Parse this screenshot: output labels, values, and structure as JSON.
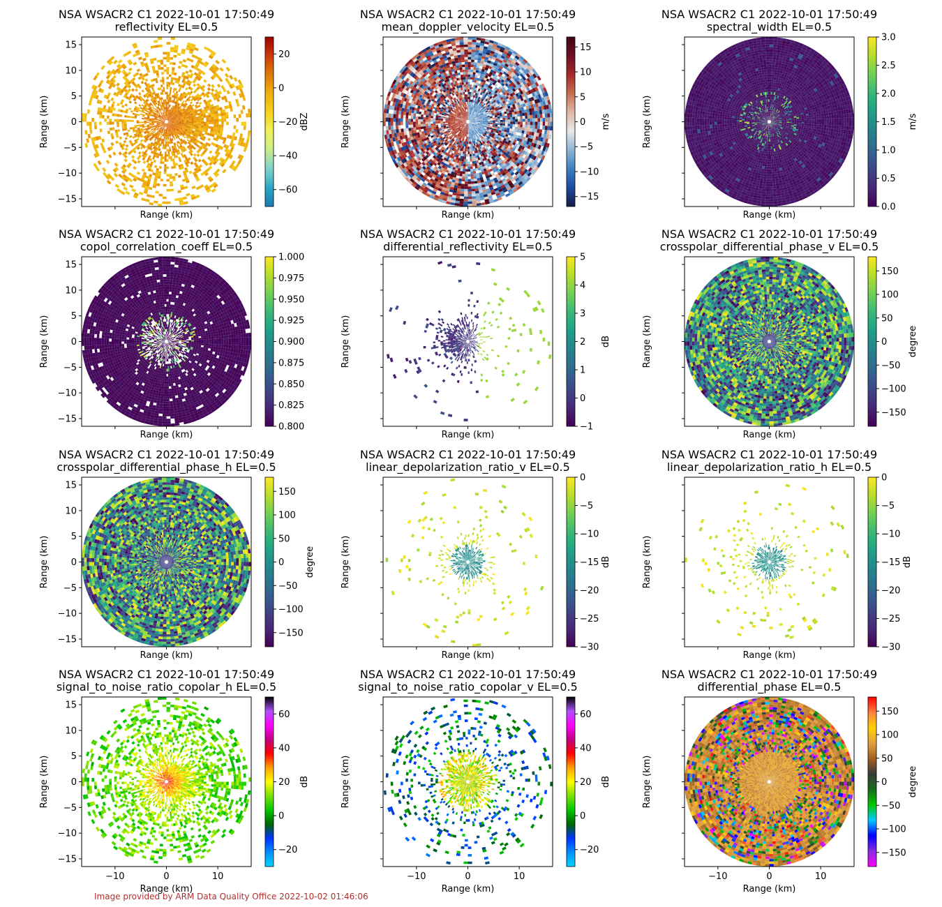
{
  "footer": "Image provided by ARM Data Quality Office 2022-10-02 01:46:06",
  "chart_data": [
    {
      "type": "heatmap",
      "title": "NSA WSACR2 C1 2022-10-01 17:50:49",
      "subtitle": "reflectivity  EL=0.5",
      "xlabel": "Range (km)",
      "ylabel": "Range (km)",
      "xlim": [
        -16.5,
        16.5
      ],
      "ylim": [
        -16.5,
        16.5
      ],
      "yticks": [
        15,
        10,
        5,
        0,
        -5,
        -10,
        -15
      ],
      "xticks": [
        -10,
        0,
        10
      ],
      "colorbar": {
        "label": "dBZ",
        "ticks": [
          20,
          0,
          -20,
          -40,
          -60
        ],
        "range": [
          -70,
          30
        ],
        "cmap": "pyart_homeyer"
      },
      "pattern": "refl"
    },
    {
      "type": "heatmap",
      "title": "NSA WSACR2 C1 2022-10-01 17:50:49",
      "subtitle": "mean_doppler_velocity  EL=0.5",
      "xlabel": "Range (km)",
      "ylabel": "Range (km)",
      "xlim": [
        -16.5,
        16.5
      ],
      "ylim": [
        -16.5,
        16.5
      ],
      "yticks": [
        15,
        10,
        5,
        0,
        -5,
        -10,
        -15
      ],
      "xticks": [
        -10,
        0,
        10
      ],
      "colorbar": {
        "label": "m/s",
        "ticks": [
          15,
          10,
          5,
          0,
          -5,
          -10,
          -15
        ],
        "range": [
          -17,
          17
        ],
        "cmap": "balance"
      },
      "pattern": "vel"
    },
    {
      "type": "heatmap",
      "title": "NSA WSACR2 C1 2022-10-01 17:50:49",
      "subtitle": "spectral_width  EL=0.5",
      "xlabel": "Range (km)",
      "ylabel": "Range (km)",
      "xlim": [
        -16.5,
        16.5
      ],
      "ylim": [
        -16.5,
        16.5
      ],
      "yticks": [
        15,
        10,
        5,
        0,
        -5,
        -10,
        -15
      ],
      "xticks": [
        -10,
        0,
        10
      ],
      "colorbar": {
        "label": "m/s",
        "ticks": [
          3.0,
          2.5,
          2.0,
          1.5,
          1.0,
          0.5,
          0.0
        ],
        "ticklabels": [
          "3.0",
          "2.5",
          "2.0",
          "1.5",
          "1.0",
          "0.5",
          "0.0"
        ],
        "range": [
          0,
          3
        ],
        "cmap": "viridis"
      },
      "pattern": "sw"
    },
    {
      "type": "heatmap",
      "title": "NSA WSACR2 C1 2022-10-01 17:50:49",
      "subtitle": "copol_correlation_coeff  EL=0.5",
      "xlabel": "Range (km)",
      "ylabel": "Range (km)",
      "xlim": [
        -16.5,
        16.5
      ],
      "ylim": [
        -16.5,
        16.5
      ],
      "yticks": [
        15,
        10,
        5,
        0,
        -5,
        -10,
        -15
      ],
      "xticks": [
        -10,
        0,
        10
      ],
      "colorbar": {
        "label": "",
        "ticks": [
          1.0,
          0.975,
          0.95,
          0.925,
          0.9,
          0.875,
          0.85,
          0.825,
          0.8
        ],
        "ticklabels": [
          "1.000",
          "0.975",
          "0.950",
          "0.925",
          "0.900",
          "0.875",
          "0.850",
          "0.825",
          "0.800"
        ],
        "range": [
          0.8,
          1.0
        ],
        "cmap": "viridis"
      },
      "pattern": "rho"
    },
    {
      "type": "heatmap",
      "title": "NSA WSACR2 C1 2022-10-01 17:50:49",
      "subtitle": "differential_reflectivity  EL=0.5",
      "xlabel": "Range (km)",
      "ylabel": "Range (km)",
      "xlim": [
        -16.5,
        16.5
      ],
      "ylim": [
        -16.5,
        16.5
      ],
      "yticks": [
        15,
        10,
        5,
        0,
        -5,
        -10,
        -15
      ],
      "xticks": [
        -10,
        0,
        10
      ],
      "colorbar": {
        "label": "dB",
        "ticks": [
          5,
          4,
          3,
          2,
          1,
          0,
          -1
        ],
        "range": [
          -1,
          5
        ],
        "cmap": "viridis"
      },
      "pattern": "zdr"
    },
    {
      "type": "heatmap",
      "title": "NSA WSACR2 C1 2022-10-01 17:50:49",
      "subtitle": "crosspolar_differential_phase_v  EL=0.5",
      "xlabel": "Range (km)",
      "ylabel": "Range (km)",
      "xlim": [
        -16.5,
        16.5
      ],
      "ylim": [
        -16.5,
        16.5
      ],
      "yticks": [
        15,
        10,
        5,
        0,
        -5,
        -10,
        -15
      ],
      "xticks": [
        -10,
        0,
        10
      ],
      "colorbar": {
        "label": "degree",
        "ticks": [
          150,
          100,
          50,
          0,
          -50,
          -100,
          -150
        ],
        "range": [
          -180,
          180
        ],
        "cmap": "viridis"
      },
      "pattern": "phase"
    },
    {
      "type": "heatmap",
      "title": "NSA WSACR2 C1 2022-10-01 17:50:49",
      "subtitle": "crosspolar_differential_phase_h  EL=0.5",
      "xlabel": "Range (km)",
      "ylabel": "Range (km)",
      "xlim": [
        -16.5,
        16.5
      ],
      "ylim": [
        -16.5,
        16.5
      ],
      "yticks": [
        15,
        10,
        5,
        0,
        -5,
        -10,
        -15
      ],
      "xticks": [
        -10,
        0,
        10
      ],
      "colorbar": {
        "label": "degree",
        "ticks": [
          150,
          100,
          50,
          0,
          -50,
          -100,
          -150
        ],
        "range": [
          -180,
          180
        ],
        "cmap": "viridis"
      },
      "pattern": "phase"
    },
    {
      "type": "heatmap",
      "title": "NSA WSACR2 C1 2022-10-01 17:50:49",
      "subtitle": "linear_depolarization_ratio_v  EL=0.5",
      "xlabel": "Range (km)",
      "ylabel": "Range (km)",
      "xlim": [
        -16.5,
        16.5
      ],
      "ylim": [
        -16.5,
        16.5
      ],
      "yticks": [
        15,
        10,
        5,
        0,
        -5,
        -10,
        -15
      ],
      "xticks": [
        -10,
        0,
        10
      ],
      "colorbar": {
        "label": "dB",
        "ticks": [
          0,
          -5,
          -10,
          -15,
          -20,
          -25,
          -30
        ],
        "range": [
          -30,
          0
        ],
        "cmap": "viridis"
      },
      "pattern": "ldr"
    },
    {
      "type": "heatmap",
      "title": "NSA WSACR2 C1 2022-10-01 17:50:49",
      "subtitle": "linear_depolarization_ratio_h  EL=0.5",
      "xlabel": "Range (km)",
      "ylabel": "Range (km)",
      "xlim": [
        -16.5,
        16.5
      ],
      "ylim": [
        -16.5,
        16.5
      ],
      "yticks": [
        15,
        10,
        5,
        0,
        -5,
        -10,
        -15
      ],
      "xticks": [
        -10,
        0,
        10
      ],
      "colorbar": {
        "label": "dB",
        "ticks": [
          0,
          -5,
          -10,
          -15,
          -20,
          -25,
          -30
        ],
        "range": [
          -30,
          0
        ],
        "cmap": "viridis"
      },
      "pattern": "ldr"
    },
    {
      "type": "heatmap",
      "title": "NSA WSACR2 C1 2022-10-01 17:50:49",
      "subtitle": "signal_to_noise_ratio_copolar_h  EL=0.5",
      "xlabel": "Range (km)",
      "ylabel": "Range (km)",
      "xlim": [
        -16.5,
        16.5
      ],
      "ylim": [
        -16.5,
        16.5
      ],
      "yticks": [
        15,
        10,
        5,
        0,
        -5,
        -10,
        -15
      ],
      "xticks": [
        -10,
        0,
        10
      ],
      "colorbar": {
        "label": "dB",
        "ticks": [
          60,
          40,
          20,
          0,
          -20
        ],
        "range": [
          -30,
          70
        ],
        "cmap": "pyart_carbone"
      },
      "pattern": "snr_h"
    },
    {
      "type": "heatmap",
      "title": "NSA WSACR2 C1 2022-10-01 17:50:49",
      "subtitle": "signal_to_noise_ratio_copolar_v  EL=0.5",
      "xlabel": "Range (km)",
      "ylabel": "Range (km)",
      "xlim": [
        -16.5,
        16.5
      ],
      "ylim": [
        -16.5,
        16.5
      ],
      "yticks": [
        15,
        10,
        5,
        0,
        -5,
        -10,
        -15
      ],
      "xticks": [
        -10,
        0,
        10
      ],
      "colorbar": {
        "label": "dB",
        "ticks": [
          60,
          40,
          20,
          0,
          -20
        ],
        "range": [
          -30,
          70
        ],
        "cmap": "pyart_carbone"
      },
      "pattern": "snr_v"
    },
    {
      "type": "heatmap",
      "title": "NSA WSACR2 C1 2022-10-01 17:50:49",
      "subtitle": "differential_phase  EL=0.5",
      "xlabel": "Range (km)",
      "ylabel": "Range (km)",
      "xlim": [
        -16.5,
        16.5
      ],
      "ylim": [
        -16.5,
        16.5
      ],
      "yticks": [
        15,
        10,
        5,
        0,
        -5,
        -10,
        -15
      ],
      "xticks": [
        -10,
        0,
        10
      ],
      "colorbar": {
        "label": "degree",
        "ticks": [
          150,
          100,
          50,
          0,
          -50,
          -100,
          -150
        ],
        "range": [
          -180,
          180
        ],
        "cmap": "wild"
      },
      "pattern": "dp"
    }
  ]
}
